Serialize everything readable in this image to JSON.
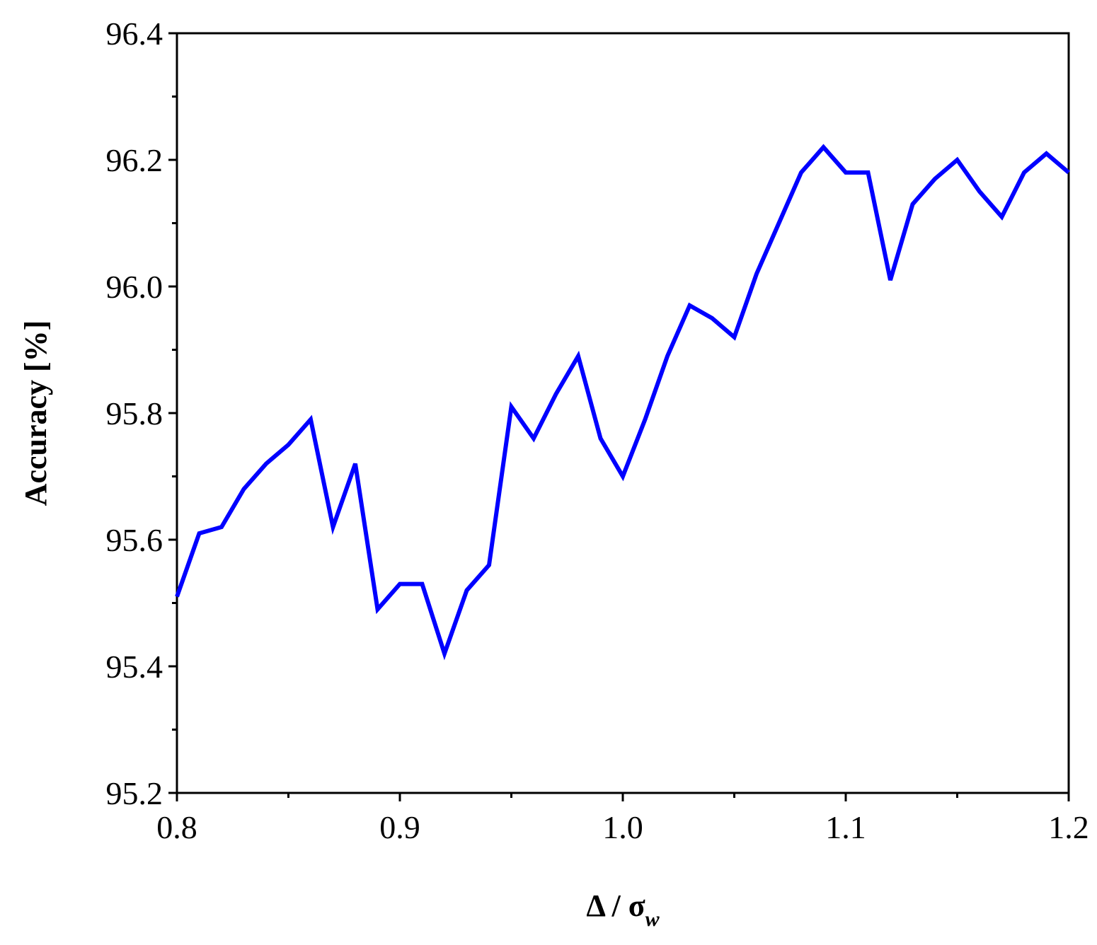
{
  "chart_data": {
    "type": "line",
    "ylabel": "Accuracy [%]",
    "xlabel": "Δ  / σ",
    "xlabel_subscript": "w",
    "x": [
      0.8,
      0.81,
      0.82,
      0.83,
      0.84,
      0.85,
      0.86,
      0.87,
      0.88,
      0.89,
      0.9,
      0.91,
      0.92,
      0.93,
      0.94,
      0.95,
      0.96,
      0.97,
      0.98,
      0.99,
      1.0,
      1.01,
      1.02,
      1.03,
      1.04,
      1.05,
      1.06,
      1.07,
      1.08,
      1.09,
      1.1,
      1.11,
      1.12,
      1.13,
      1.14,
      1.15,
      1.16,
      1.17,
      1.18,
      1.19,
      1.2
    ],
    "values": [
      95.51,
      95.61,
      95.62,
      95.68,
      95.72,
      95.75,
      95.79,
      95.62,
      95.72,
      95.49,
      95.53,
      95.53,
      95.42,
      95.52,
      95.56,
      95.81,
      95.76,
      95.83,
      95.89,
      95.76,
      95.7,
      95.79,
      95.89,
      95.97,
      95.95,
      95.92,
      96.02,
      96.1,
      96.18,
      96.22,
      96.18,
      96.18,
      96.01,
      96.13,
      96.17,
      96.2,
      96.15,
      96.11,
      96.18,
      96.21,
      96.18
    ],
    "color": "#0000ff",
    "xlim": [
      0.8,
      1.2
    ],
    "xticks": [
      0.8,
      0.9,
      {
        "value": 1.0,
        "label": "1.0"
      },
      1.1,
      1.2
    ],
    "xminor_ticks": [
      0.85,
      0.95,
      1.05,
      1.15
    ],
    "ylim": [
      95.2,
      96.4
    ],
    "yticks": [
      95.2,
      95.4,
      95.6,
      95.8,
      {
        "value": 96.0,
        "label": "96.0"
      },
      96.2,
      96.4
    ],
    "yminor_ticks": [
      95.3,
      95.5,
      95.7,
      95.9,
      96.1,
      96.3
    ],
    "grid": false
  }
}
